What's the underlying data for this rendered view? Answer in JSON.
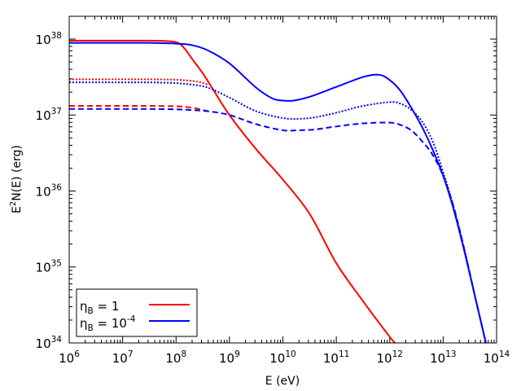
{
  "chart_data": {
    "type": "line",
    "title": "",
    "xscale": "log",
    "yscale": "log",
    "xlim_exp": [
      6,
      14
    ],
    "ylim_exp": [
      34,
      38.3
    ],
    "xlabel": "E (eV)",
    "ylabel": {
      "pre": "E",
      "sup": "2",
      "post": "N(E) (erg)"
    },
    "tick_base": "10",
    "x_ticks": [
      "6",
      "7",
      "8",
      "9",
      "10",
      "11",
      "12",
      "13",
      "14"
    ],
    "y_ticks": [
      "34",
      "35",
      "36",
      "37",
      "38"
    ],
    "legend": {
      "position": "bottom-left",
      "entries": [
        {
          "sym": "η",
          "sub": "B",
          "mid": " = 1",
          "sup": "",
          "color": "#ff0000"
        },
        {
          "sym": "η",
          "sub": "B",
          "mid": " = 10",
          "sup": "-4",
          "color": "#0000ff"
        }
      ]
    },
    "series": [
      {
        "name": "ηB = 1 (solid)",
        "color": "#ff0000",
        "style": "solid",
        "x_log": [
          6,
          7,
          7.5,
          7.8,
          8,
          8.1,
          8.2,
          8.3,
          8.5,
          8.7,
          9,
          9.5,
          10,
          10.5,
          11,
          11.5,
          12,
          12.1
        ],
        "y_log": [
          37.98,
          37.98,
          37.98,
          37.975,
          37.96,
          37.92,
          37.84,
          37.74,
          37.55,
          37.33,
          37.0,
          36.55,
          36.15,
          35.7,
          35.05,
          34.55,
          34.08,
          34.0
        ]
      },
      {
        "name": "ηB = 1 (dotted)",
        "color": "#ff0000",
        "style": "dotted",
        "x_log": [
          6,
          7,
          7.5,
          8,
          8.2,
          8.4,
          8.6
        ],
        "y_log": [
          37.47,
          37.47,
          37.47,
          37.465,
          37.455,
          37.44,
          37.4
        ]
      },
      {
        "name": "ηB = 1 (dashed)",
        "color": "#ff0000",
        "style": "dashed",
        "x_log": [
          6,
          7,
          7.5,
          8,
          8.2,
          8.4,
          8.6
        ],
        "y_log": [
          37.12,
          37.12,
          37.12,
          37.115,
          37.105,
          37.085,
          37.05
        ]
      },
      {
        "name": "ηB = 10^-4 (solid)",
        "color": "#0000ff",
        "style": "solid",
        "x_log": [
          6,
          7,
          7.5,
          8,
          8.3,
          8.6,
          9,
          9.5,
          9.8,
          10,
          10.2,
          10.5,
          11,
          11.5,
          11.8,
          12,
          12.2,
          12.4,
          12.6,
          12.8,
          13,
          13.2,
          13.4,
          13.6,
          13.8
        ],
        "y_log": [
          37.95,
          37.95,
          37.95,
          37.94,
          37.92,
          37.85,
          37.68,
          37.36,
          37.22,
          37.19,
          37.19,
          37.24,
          37.37,
          37.5,
          37.53,
          37.46,
          37.32,
          37.1,
          36.85,
          36.55,
          36.2,
          35.75,
          35.2,
          34.6,
          34.0
        ]
      },
      {
        "name": "ηB = 10^-4 (dotted)",
        "color": "#0000ff",
        "style": "dotted",
        "x_log": [
          6,
          7,
          7.5,
          8,
          8.3,
          8.6,
          9,
          9.5,
          10,
          10.3,
          10.6,
          11,
          11.5,
          12,
          12.2,
          12.4,
          12.6,
          12.8,
          13,
          13.2,
          13.4,
          13.6,
          13.8
        ],
        "y_log": [
          37.43,
          37.43,
          37.43,
          37.42,
          37.4,
          37.36,
          37.23,
          37.05,
          36.96,
          36.95,
          36.97,
          37.03,
          37.12,
          37.17,
          37.15,
          37.07,
          36.92,
          36.66,
          36.25,
          35.78,
          35.22,
          34.6,
          34.0
        ]
      },
      {
        "name": "ηB = 10^-4 (dashed)",
        "color": "#0000ff",
        "style": "dashed",
        "x_log": [
          6,
          7,
          7.5,
          8,
          8.3,
          8.6,
          9,
          9.5,
          10,
          10.3,
          10.6,
          11,
          11.5,
          12,
          12.2,
          12.4,
          12.6,
          12.8,
          13,
          13.2,
          13.4,
          13.6,
          13.8
        ],
        "y_log": [
          37.08,
          37.08,
          37.08,
          37.075,
          37.065,
          37.05,
          37.0,
          36.88,
          36.8,
          36.8,
          36.81,
          36.85,
          36.89,
          36.9,
          36.87,
          36.8,
          36.66,
          36.48,
          36.2,
          35.78,
          35.22,
          34.6,
          34.0
        ]
      }
    ]
  }
}
